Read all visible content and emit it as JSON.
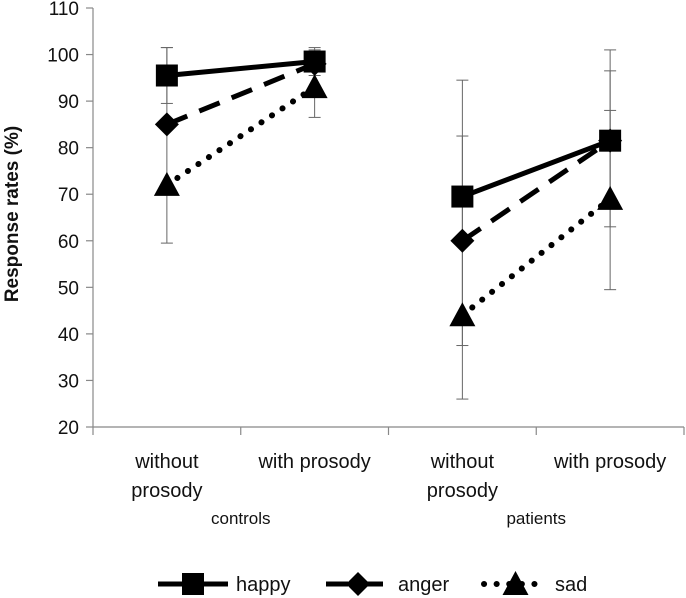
{
  "chart_data": {
    "type": "line",
    "title": "",
    "ylabel": "Response rates (%)",
    "xlabel": "",
    "ylim": [
      20,
      110
    ],
    "yticks": [
      20,
      30,
      40,
      50,
      60,
      70,
      80,
      90,
      100,
      110
    ],
    "groups": [
      {
        "name": "controls",
        "categories": [
          {
            "lines": [
              "without",
              "prosody"
            ]
          },
          {
            "lines": [
              "with prosody"
            ]
          }
        ]
      },
      {
        "name": "patients",
        "categories": [
          {
            "lines": [
              "without",
              "prosody"
            ]
          },
          {
            "lines": [
              "with prosody"
            ]
          }
        ]
      }
    ],
    "series": [
      {
        "name": "happy",
        "marker": "square",
        "style": "solid",
        "values": [
          [
            95.5,
            98.5
          ],
          [
            69.5,
            81.5
          ]
        ],
        "err_low": [
          null,
          null,
          null,
          null
        ],
        "err_high": [
          null,
          null,
          null,
          null
        ]
      },
      {
        "name": "anger",
        "marker": "diamond",
        "style": "dashed",
        "values": [
          [
            85,
            98
          ],
          [
            60,
            81.5
          ]
        ]
      },
      {
        "name": "sad",
        "marker": "triangle",
        "style": "dotted",
        "values": [
          [
            72,
            93
          ],
          [
            44,
            69
          ]
        ]
      }
    ],
    "error_bars": [
      {
        "group": 0,
        "cat": 0,
        "low": 59.5,
        "high": 101.5
      },
      {
        "group": 0,
        "cat": 0,
        "low": 89.5,
        "high": 101.5
      },
      {
        "group": 0,
        "cat": 1,
        "low": 86.5,
        "high": 101.5
      },
      {
        "group": 0,
        "cat": 1,
        "low": 95.5,
        "high": 101
      },
      {
        "group": 1,
        "cat": 0,
        "low": 26,
        "high": 94.5
      },
      {
        "group": 1,
        "cat": 0,
        "low": 37.5,
        "high": 82.5
      },
      {
        "group": 1,
        "cat": 1,
        "low": 49.5,
        "high": 101
      },
      {
        "group": 1,
        "cat": 1,
        "low": 63,
        "high": 96.5
      },
      {
        "group": 1,
        "cat": 1,
        "low": 67,
        "high": 88
      }
    ],
    "legend_position": "bottom",
    "grid": false
  }
}
